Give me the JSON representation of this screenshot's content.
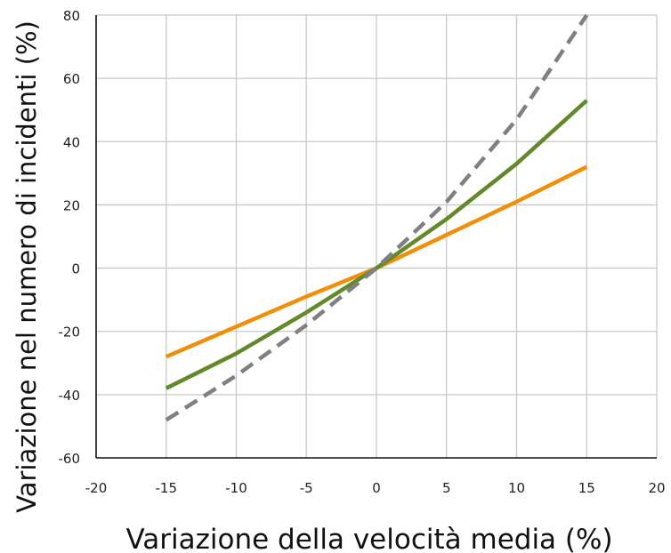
{
  "chart_data": {
    "type": "line",
    "title": "",
    "xlabel": "Variazione della velocità media (%)",
    "ylabel": "Variazione nel numero di incidenti (%)",
    "xlim": [
      -20,
      20
    ],
    "ylim": [
      -60,
      80
    ],
    "xticks": [
      -20,
      -15,
      -10,
      -5,
      0,
      5,
      10,
      15,
      20
    ],
    "yticks": [
      -60,
      -40,
      -20,
      0,
      20,
      40,
      60,
      80
    ],
    "grid": true,
    "legend": "none",
    "series": [
      {
        "color": "#f0900a",
        "style": "solid",
        "x": [
          -15,
          -10,
          -5,
          0,
          5,
          10,
          15
        ],
        "y": [
          -28,
          -18.5,
          -9,
          0,
          10.5,
          21,
          32
        ]
      },
      {
        "color": "#62892a",
        "style": "solid",
        "x": [
          -15,
          -10,
          -5,
          0,
          5,
          10,
          15
        ],
        "y": [
          -38,
          -27,
          -14,
          0,
          15.5,
          33,
          53
        ]
      },
      {
        "color": "#808080",
        "style": "dashed",
        "x": [
          -15,
          -10,
          -5,
          0,
          5,
          10,
          15
        ],
        "y": [
          -48,
          -34,
          -18,
          0,
          21,
          47,
          80
        ]
      }
    ]
  }
}
